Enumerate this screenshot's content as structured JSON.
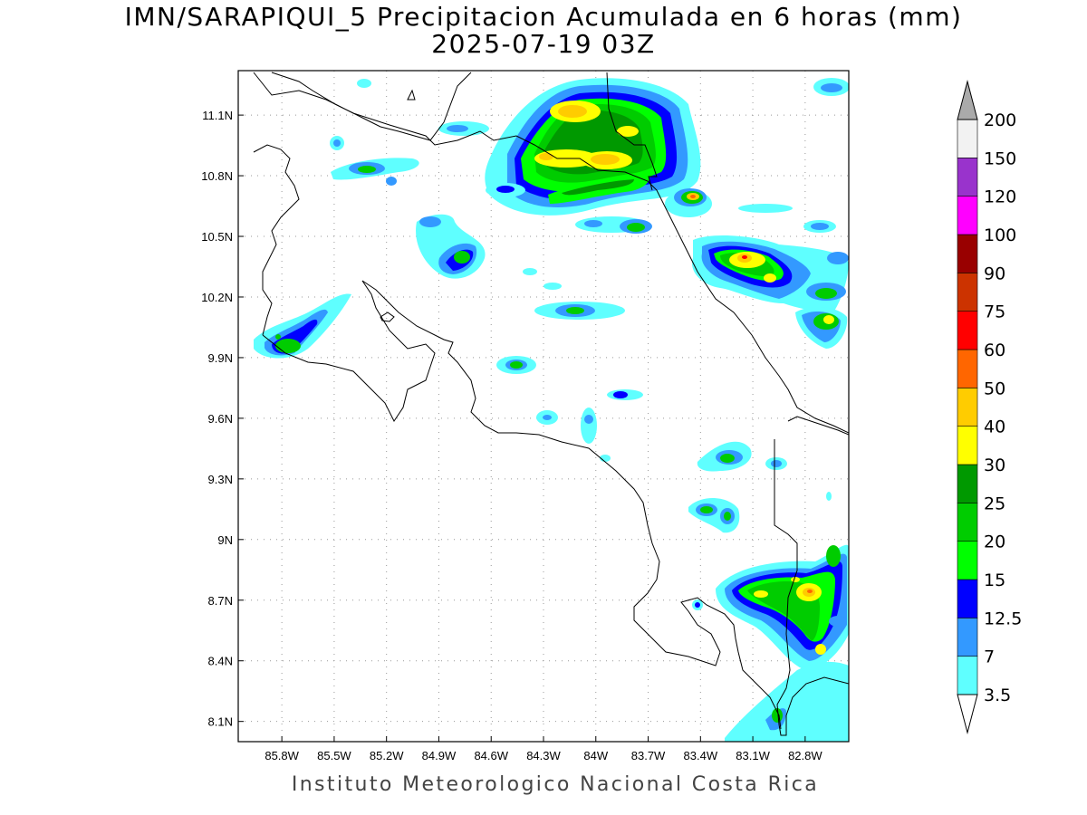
{
  "title": {
    "line1": "IMN/SARAPIQUI_5 Precipitacion Acumulada en 6 horas (mm)",
    "line2": "2025-07-19 03Z"
  },
  "footer": "Instituto Meteorologico Nacional Costa Rica",
  "map": {
    "lon_range": [
      -86.05,
      -82.55
    ],
    "lat_range": [
      8.0,
      11.32
    ],
    "lat_labels": [
      "11.1N",
      "10.8N",
      "10.5N",
      "10.2N",
      "9.9N",
      "9.6N",
      "9.3N",
      "9N",
      "8.7N",
      "8.4N",
      "8.1N"
    ],
    "lat_values": [
      11.1,
      10.8,
      10.5,
      10.2,
      9.9,
      9.6,
      9.3,
      9.0,
      8.7,
      8.4,
      8.1
    ],
    "lon_labels": [
      "85.8W",
      "85.5W",
      "85.2W",
      "84.9W",
      "84.6W",
      "84.3W",
      "84W",
      "83.7W",
      "83.4W",
      "83.1W",
      "82.8W"
    ],
    "lon_values": [
      -85.8,
      -85.5,
      -85.2,
      -84.9,
      -84.6,
      -84.3,
      -84.0,
      -83.7,
      -83.4,
      -83.1,
      -82.8
    ],
    "gridlines": "dotted"
  },
  "colorbar": {
    "labels": [
      "3.5",
      "7",
      "12.5",
      "15",
      "20",
      "25",
      "30",
      "40",
      "50",
      "60",
      "75",
      "90",
      "100",
      "120",
      "150",
      "200"
    ],
    "colors": [
      "#5fffff",
      "#3399ff",
      "#0000ff",
      "#00ff00",
      "#00cc00",
      "#009900",
      "#ffff00",
      "#ffcc00",
      "#ff6600",
      "#ff0000",
      "#cc3300",
      "#990000",
      "#ff00ff",
      "#9933cc",
      "#f2f2f2",
      "#aaaaaa"
    ],
    "low_end_color": "#ffffff",
    "high_end_color": "#aaaaaa"
  }
}
